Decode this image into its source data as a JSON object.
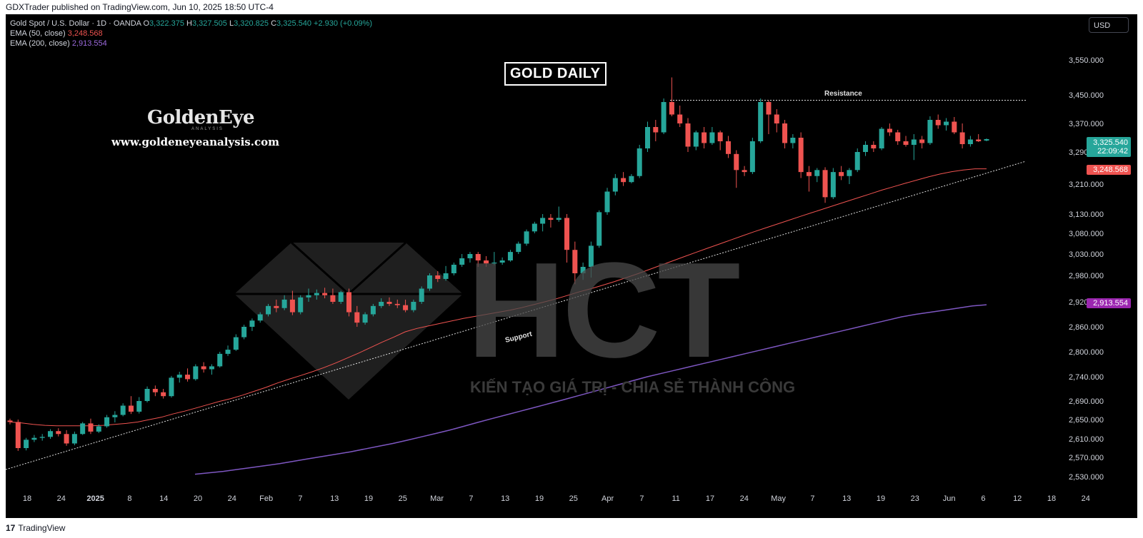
{
  "publisher": "GDXTrader published on TradingView.com, Jun 10, 2025 18:50 UTC-4",
  "legend": {
    "symbol": "Gold Spot / U.S. Dollar · 1D · OANDA",
    "o_label": "O",
    "o": "3,322.375",
    "h_label": "H",
    "h": "3,327.505",
    "l_label": "L",
    "l": "3,320.825",
    "c_label": "C",
    "c": "3,325.540",
    "change": "+2.930 (+0.09%)",
    "ema50_label": "EMA (50, close)",
    "ema50_value": "3,248.568",
    "ema200_label": "EMA (200, close)",
    "ema200_value": "2,913.554"
  },
  "currency": "USD",
  "title_box": "GOLD DAILY",
  "goldeneye": {
    "logo": "GoldenEye",
    "sub": "ANALYSIS",
    "url": "www.goldeneyeanalysis.com"
  },
  "hct": {
    "logo": "HCT",
    "slogan": "KIẾN TẠO GIÁ TRỊ - CHIA SẺ THÀNH CÔNG"
  },
  "footer": {
    "logo": "17",
    "brand": "TradingView"
  },
  "badges": {
    "close_price": "3,325.540",
    "countdown": "22:09:42",
    "ema50": "3,248.568",
    "ema200": "2,913.554"
  },
  "colors": {
    "up": "#26a69a",
    "down": "#ef5350",
    "ema50": "#ef5350",
    "ema200": "#7e57c2",
    "background": "#000000"
  },
  "chart_data": {
    "type": "candlestick",
    "annotations": {
      "resistance_label": "Resistance",
      "support_label": "Support"
    },
    "resistance_level": 3435,
    "support_line": {
      "from": {
        "date": "Dec 16",
        "price": 2540
      },
      "to": {
        "date": "Jun 12",
        "price": 3300
      }
    },
    "y_ticks": [
      "3,550.000",
      "3,450.000",
      "3,370.000",
      "3,290.000",
      "3,210.000",
      "3,130.000",
      "3,080.000",
      "3,030.000",
      "2,980.000",
      "2,920.000",
      "2,860.000",
      "2,800.000",
      "2,740.000",
      "2,690.000",
      "2,650.000",
      "2,610.000",
      "2,570.000",
      "2,530.000"
    ],
    "x_ticks": [
      "18",
      "24",
      "2025",
      "8",
      "14",
      "20",
      "24",
      "Feb",
      "7",
      "13",
      "19",
      "25",
      "Mar",
      "7",
      "13",
      "19",
      "25",
      "Apr",
      "7",
      "11",
      "17",
      "24",
      "May",
      "7",
      "13",
      "19",
      "23",
      "Jun",
      "6",
      "12",
      "18",
      "24"
    ],
    "candles": [
      [
        2648,
        2652,
        2640,
        2645
      ],
      [
        2645,
        2650,
        2584,
        2590
      ],
      [
        2590,
        2612,
        2585,
        2608
      ],
      [
        2608,
        2618,
        2603,
        2612
      ],
      [
        2612,
        2620,
        2606,
        2614
      ],
      [
        2614,
        2630,
        2610,
        2626
      ],
      [
        2626,
        2632,
        2615,
        2620
      ],
      [
        2620,
        2628,
        2595,
        2600
      ],
      [
        2600,
        2625,
        2596,
        2620
      ],
      [
        2620,
        2645,
        2618,
        2642
      ],
      [
        2642,
        2652,
        2620,
        2625
      ],
      [
        2625,
        2640,
        2622,
        2636
      ],
      [
        2636,
        2660,
        2633,
        2655
      ],
      [
        2655,
        2668,
        2644,
        2660
      ],
      [
        2660,
        2685,
        2657,
        2680
      ],
      [
        2680,
        2700,
        2662,
        2667
      ],
      [
        2667,
        2698,
        2663,
        2690
      ],
      [
        2690,
        2720,
        2687,
        2715
      ],
      [
        2715,
        2722,
        2700,
        2708
      ],
      [
        2708,
        2715,
        2695,
        2700
      ],
      [
        2700,
        2742,
        2697,
        2738
      ],
      [
        2738,
        2752,
        2728,
        2745
      ],
      [
        2745,
        2760,
        2730,
        2735
      ],
      [
        2735,
        2770,
        2732,
        2765
      ],
      [
        2765,
        2775,
        2750,
        2758
      ],
      [
        2758,
        2770,
        2745,
        2765
      ],
      [
        2765,
        2800,
        2762,
        2795
      ],
      [
        2795,
        2815,
        2790,
        2805
      ],
      [
        2805,
        2842,
        2802,
        2835
      ],
      [
        2835,
        2865,
        2830,
        2860
      ],
      [
        2860,
        2880,
        2850,
        2875
      ],
      [
        2875,
        2895,
        2870,
        2890
      ],
      [
        2890,
        2915,
        2885,
        2910
      ],
      [
        2910,
        2925,
        2895,
        2905
      ],
      [
        2905,
        2935,
        2900,
        2925
      ],
      [
        2925,
        2945,
        2888,
        2895
      ],
      [
        2895,
        2935,
        2890,
        2930
      ],
      [
        2930,
        2950,
        2920,
        2935
      ],
      [
        2935,
        2948,
        2925,
        2940
      ],
      [
        2940,
        2952,
        2928,
        2935
      ],
      [
        2935,
        2950,
        2915,
        2920
      ],
      [
        2920,
        2945,
        2915,
        2942
      ],
      [
        2942,
        2950,
        2885,
        2895
      ],
      [
        2895,
        2910,
        2860,
        2870
      ],
      [
        2870,
        2895,
        2865,
        2890
      ],
      [
        2890,
        2915,
        2885,
        2910
      ],
      [
        2910,
        2928,
        2905,
        2920
      ],
      [
        2920,
        2930,
        2910,
        2915
      ],
      [
        2915,
        2925,
        2905,
        2912
      ],
      [
        2912,
        2925,
        2895,
        2900
      ],
      [
        2900,
        2925,
        2895,
        2920
      ],
      [
        2920,
        2955,
        2915,
        2950
      ],
      [
        2950,
        2985,
        2945,
        2980
      ],
      [
        2980,
        2990,
        2965,
        2972
      ],
      [
        2972,
        3002,
        2968,
        2985
      ],
      [
        2985,
        3010,
        2980,
        3005
      ],
      [
        3005,
        3030,
        3000,
        3020
      ],
      [
        3020,
        3035,
        3010,
        3030
      ],
      [
        3030,
        3035,
        3000,
        3015
      ],
      [
        3015,
        3025,
        3000,
        3008
      ],
      [
        3008,
        3035,
        3004,
        3010
      ],
      [
        3010,
        3022,
        3005,
        3015
      ],
      [
        3015,
        3040,
        3012,
        3035
      ],
      [
        3035,
        3060,
        3030,
        3055
      ],
      [
        3055,
        3090,
        3050,
        3085
      ],
      [
        3085,
        3110,
        3080,
        3105
      ],
      [
        3105,
        3130,
        3085,
        3120
      ],
      [
        3120,
        3130,
        3095,
        3115
      ],
      [
        3115,
        3150,
        3110,
        3120
      ],
      [
        3120,
        3130,
        3010,
        3040
      ],
      [
        3040,
        3060,
        2960,
        2985
      ],
      [
        2985,
        3010,
        2970,
        3000
      ],
      [
        3000,
        3060,
        2975,
        3050
      ],
      [
        3050,
        3140,
        3045,
        3135
      ],
      [
        3135,
        3200,
        3128,
        3190
      ],
      [
        3190,
        3235,
        3180,
        3225
      ],
      [
        3225,
        3240,
        3205,
        3215
      ],
      [
        3215,
        3235,
        3212,
        3230
      ],
      [
        3230,
        3310,
        3225,
        3300
      ],
      [
        3300,
        3375,
        3290,
        3360
      ],
      [
        3360,
        3380,
        3320,
        3345
      ],
      [
        3345,
        3440,
        3340,
        3430
      ],
      [
        3430,
        3500,
        3390,
        3395
      ],
      [
        3395,
        3420,
        3360,
        3370
      ],
      [
        3370,
        3385,
        3290,
        3305
      ],
      [
        3305,
        3350,
        3295,
        3345
      ],
      [
        3345,
        3360,
        3300,
        3315
      ],
      [
        3315,
        3360,
        3310,
        3345
      ],
      [
        3345,
        3350,
        3295,
        3320
      ],
      [
        3320,
        3335,
        3275,
        3285
      ],
      [
        3285,
        3295,
        3200,
        3245
      ],
      [
        3245,
        3255,
        3230,
        3240
      ],
      [
        3240,
        3330,
        3235,
        3320
      ],
      [
        3320,
        3440,
        3315,
        3430
      ],
      [
        3430,
        3435,
        3340,
        3395
      ],
      [
        3395,
        3410,
        3345,
        3370
      ],
      [
        3370,
        3380,
        3300,
        3315
      ],
      [
        3315,
        3340,
        3300,
        3330
      ],
      [
        3330,
        3345,
        3225,
        3240
      ],
      [
        3240,
        3255,
        3190,
        3230
      ],
      [
        3230,
        3250,
        3215,
        3245
      ],
      [
        3245,
        3252,
        3160,
        3175
      ],
      [
        3175,
        3250,
        3170,
        3240
      ],
      [
        3240,
        3255,
        3220,
        3230
      ],
      [
        3230,
        3250,
        3210,
        3245
      ],
      [
        3245,
        3300,
        3240,
        3290
      ],
      [
        3290,
        3320,
        3280,
        3310
      ],
      [
        3310,
        3320,
        3290,
        3300
      ],
      [
        3300,
        3360,
        3295,
        3355
      ],
      [
        3355,
        3370,
        3335,
        3345
      ],
      [
        3345,
        3352,
        3310,
        3320
      ],
      [
        3320,
        3335,
        3305,
        3310
      ],
      [
        3310,
        3340,
        3270,
        3325
      ],
      [
        3325,
        3335,
        3300,
        3315
      ],
      [
        3315,
        3390,
        3310,
        3380
      ],
      [
        3380,
        3395,
        3355,
        3365
      ],
      [
        3365,
        3385,
        3350,
        3375
      ],
      [
        3375,
        3388,
        3340,
        3345
      ],
      [
        3345,
        3370,
        3300,
        3312
      ],
      [
        3312,
        3335,
        3305,
        3325
      ],
      [
        3325,
        3340,
        3318,
        3320
      ],
      [
        3322,
        3328,
        3320,
        3326
      ]
    ],
    "ema50": [
      2645,
      2643,
      2640,
      2638,
      2637,
      2637,
      2637,
      2637,
      2638,
      2640,
      2642,
      2645,
      2650,
      2655,
      2662,
      2668,
      2675,
      2682,
      2689,
      2695,
      2702,
      2710,
      2718,
      2727,
      2735,
      2743,
      2752,
      2762,
      2773,
      2785,
      2797,
      2810,
      2823,
      2835,
      2848,
      2856,
      2862,
      2868,
      2874,
      2880,
      2885,
      2890,
      2895,
      2900,
      2906,
      2913,
      2920,
      2927,
      2935,
      2943,
      2950,
      2958,
      2966,
      2975,
      2984,
      2994,
      3004,
      3014,
      3024,
      3034,
      3044,
      3054,
      3064,
      3074,
      3084,
      3094,
      3104,
      3114,
      3124,
      3134,
      3144,
      3154,
      3164,
      3174,
      3184,
      3194,
      3203,
      3212,
      3220,
      3228,
      3235,
      3241,
      3245,
      3248,
      3248
    ],
    "ema200": [
      2535,
      2538,
      2541,
      2545,
      2549,
      2553,
      2557,
      2562,
      2567,
      2572,
      2577,
      2582,
      2588,
      2594,
      2600,
      2607,
      2614,
      2621,
      2628,
      2636,
      2644,
      2652,
      2660,
      2668,
      2676,
      2684,
      2692,
      2700,
      2708,
      2716,
      2724,
      2732,
      2740,
      2748,
      2756,
      2764,
      2772,
      2780,
      2788,
      2796,
      2804,
      2812,
      2820,
      2828,
      2836,
      2844,
      2852,
      2860,
      2868,
      2876,
      2884,
      2890,
      2895,
      2900,
      2905,
      2910,
      2913
    ]
  }
}
